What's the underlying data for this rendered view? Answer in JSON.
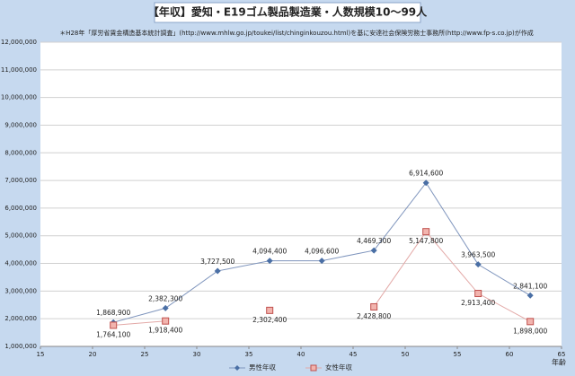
{
  "chart_data": {
    "type": "line",
    "title": "【年収】愛知・E19ゴム製品製造業・人数規模10〜99人",
    "subtitle": "＊H28年「厚労省賃金構造基本統計調査」(http://www.mhlw.go.jp/toukei/list/chinginkouzou.html)を基に安達社会保険労務士事務所(http://www.fp-s.co.jp)が作成",
    "x_label": "年齢",
    "x": [
      22,
      27,
      32,
      37,
      42,
      47,
      52,
      57,
      62
    ],
    "series": [
      {
        "name": "男性年収",
        "color": "#4a6fa5",
        "marker": "diamond",
        "label_side": "above",
        "values": [
          1868900,
          2382300,
          3727500,
          4094400,
          4096600,
          4469300,
          6914600,
          3963500,
          2841100
        ],
        "value_labels": [
          "1,868,900",
          "2,382,300",
          "3,727,500",
          "4,094,400",
          "4,096,600",
          "4,469,300",
          "6,914,600",
          "3,963,500",
          "2,841,100"
        ]
      },
      {
        "name": "女性年収",
        "color": "#c0504d",
        "marker": "square",
        "label_side": "below",
        "values": [
          1764100,
          1918400,
          null,
          2302400,
          null,
          2428800,
          5147800,
          2913400,
          1898000
        ],
        "value_labels": [
          "1,764,100",
          "1,918,400",
          null,
          "2,302,400",
          null,
          "2,428,800",
          "5,147,800",
          "2,913,400",
          "1,898,000"
        ]
      }
    ],
    "xlim": [
      15,
      65
    ],
    "xticks": [
      15,
      20,
      25,
      30,
      35,
      40,
      45,
      50,
      55,
      60,
      65
    ],
    "ylim": [
      1000000,
      12000000
    ],
    "yticks": [
      {
        "value": 1000000,
        "label": "1,000,000"
      },
      {
        "value": 2000000,
        "label": "2,000,000"
      },
      {
        "value": 3000000,
        "label": "3,000,000"
      },
      {
        "value": 4000000,
        "label": "4,000,000"
      },
      {
        "value": 5000000,
        "label": "5,000,000"
      },
      {
        "value": 6000000,
        "label": "6,000,000"
      },
      {
        "value": 7000000,
        "label": "7,000,000"
      },
      {
        "value": 8000000,
        "label": "8,000,000"
      },
      {
        "value": 9000000,
        "label": "9,000,000"
      },
      {
        "value": 10000000,
        "label": "10,000,000"
      },
      {
        "value": 11000000,
        "label": "11,000,000"
      },
      {
        "value": 12000000,
        "label": "12,000,000"
      }
    ],
    "grid": true,
    "legend": "bottom"
  }
}
